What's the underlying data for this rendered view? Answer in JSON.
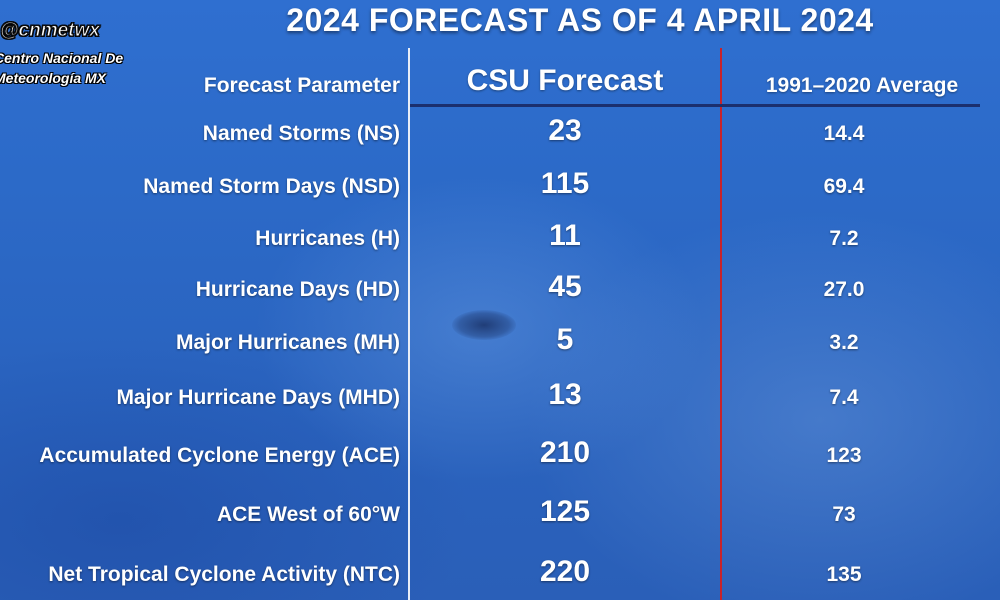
{
  "title": "2024 FORECAST AS OF 4 APRIL 2024",
  "watermark": {
    "handle": "@cnmetwx",
    "org_line1": "Centro Nacional De",
    "org_line2": "Meteorología MX"
  },
  "table": {
    "headers": {
      "parameter": "Forecast Parameter",
      "forecast": "CSU Forecast",
      "average": "1991–2020 Average"
    },
    "rows": [
      {
        "parameter": "Named Storms (NS)",
        "forecast": "23",
        "average": "14.4"
      },
      {
        "parameter": "Named Storm Days (NSD)",
        "forecast": "115",
        "average": "69.4"
      },
      {
        "parameter": "Hurricanes (H)",
        "forecast": "11",
        "average": "7.2"
      },
      {
        "parameter": "Hurricane Days (HD)",
        "forecast": "45",
        "average": "27.0"
      },
      {
        "parameter": "Major Hurricanes (MH)",
        "forecast": "5",
        "average": "3.2"
      },
      {
        "parameter": "Major Hurricane Days (MHD)",
        "forecast": "13",
        "average": "7.4"
      },
      {
        "parameter": "Accumulated Cyclone Energy (ACE)",
        "forecast": "210",
        "average": "123"
      },
      {
        "parameter": "ACE West of 60°W",
        "forecast": "125",
        "average": "73"
      },
      {
        "parameter": "Net Tropical Cyclone Activity (NTC)",
        "forecast": "220",
        "average": "135"
      }
    ]
  },
  "colors": {
    "background": "#2c6ac8",
    "text": "#ffffff",
    "divider": "#e9eef7",
    "accent_line": "#c8222a",
    "header_rule": "#1b2f6e"
  }
}
